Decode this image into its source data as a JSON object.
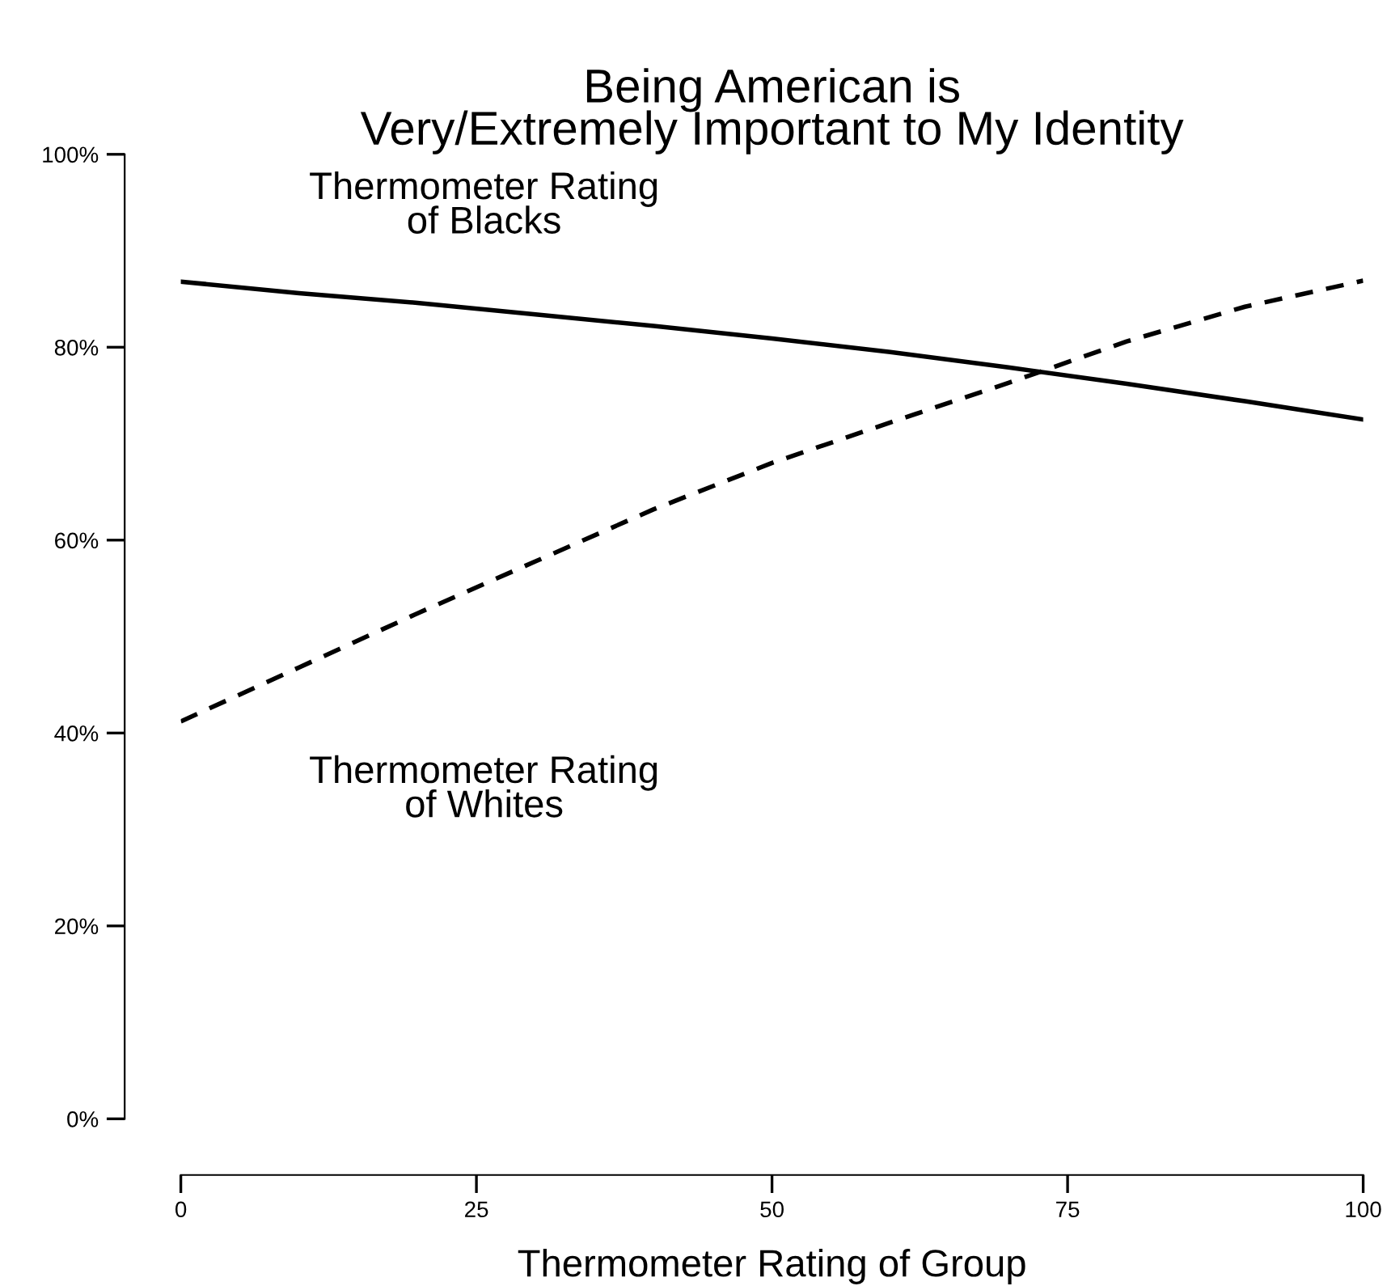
{
  "chart_data": {
    "type": "line",
    "title": "Being American is\nVery/Extremely Important to My Identity",
    "xlabel": "Thermometer Rating of Group",
    "x": [
      0,
      10,
      20,
      30,
      40,
      50,
      60,
      70,
      80,
      90,
      100
    ],
    "series": [
      {
        "name": "Thermometer Rating\nof Blacks",
        "color": "#000000",
        "line_style": "solid",
        "values": [
          86.8,
          85.6,
          84.6,
          83.4,
          82.2,
          80.9,
          79.5,
          77.9,
          76.2,
          74.4,
          72.5
        ]
      },
      {
        "name": "Thermometer Rating\nof Whites",
        "color": "#000000",
        "line_style": "dashed",
        "values": [
          41.2,
          46.8,
          52.4,
          57.8,
          63.2,
          68.0,
          72.2,
          76.3,
          80.6,
          84.2,
          86.9
        ]
      }
    ],
    "xlim": [
      0,
      100
    ],
    "xticks": [
      0,
      25,
      50,
      75,
      100
    ],
    "ylim": [
      0,
      100
    ],
    "yticks": [
      {
        "value": 0,
        "label": "0%"
      },
      {
        "value": 20,
        "label": "20%"
      },
      {
        "value": 40,
        "label": "40%"
      },
      {
        "value": 60,
        "label": "60%"
      },
      {
        "value": 80,
        "label": "80%"
      },
      {
        "value": 100,
        "label": "100%"
      }
    ],
    "grid": false,
    "legend": false
  }
}
